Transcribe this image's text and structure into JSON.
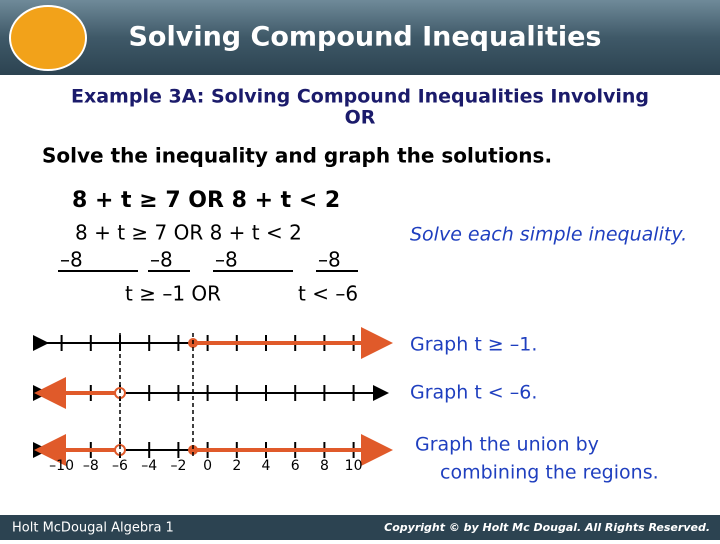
{
  "header": {
    "title": "Solving Compound Inequalities"
  },
  "example": {
    "title_line1": "Example 3A: Solving Compound Inequalities Involving",
    "title_line2": "OR"
  },
  "instruction": "Solve the inequality and graph the solutions.",
  "problem": "8 + t ≥ 7 OR 8 + t < 2",
  "steps": {
    "line1": "8 + t ≥ 7 OR 8 + t < 2",
    "subtractions": [
      "–8",
      "–8",
      "–8",
      "–8"
    ],
    "result_left": "t ≥ –1 OR",
    "result_right": "t < –6"
  },
  "notes": [
    "Solve each simple inequality.",
    "Graph t ≥ –1.",
    "Graph t < –6.",
    "Graph the union by",
    "combining the regions."
  ],
  "axis_labels": [
    "–10",
    "–8",
    "–6",
    "–4",
    "–2",
    "0",
    "2",
    "4",
    "6",
    "8",
    "10"
  ],
  "footer": {
    "left": "Holt McDougal Algebra 1",
    "right": "Copyright © by Holt Mc Dougal. All Rights Reserved."
  }
}
